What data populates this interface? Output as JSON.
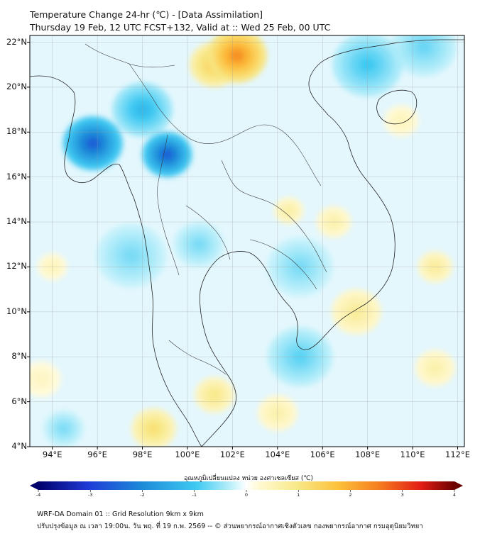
{
  "header": {
    "title_line1": "Temperature Change 24-hr (℃) - [Data Assimilation]",
    "title_line2": "Thursday 19 Feb, 12 UTC FCST+132, Valid at :: Wed 25 Feb, 00 UTC"
  },
  "map": {
    "lat_labels": [
      "22°N",
      "20°N",
      "18°N",
      "16°N",
      "14°N",
      "12°N",
      "10°N",
      "8°N",
      "6°N",
      "4°N"
    ],
    "lon_labels": [
      "94°E",
      "96°E",
      "98°E",
      "100°E",
      "102°E",
      "104°E",
      "106°E",
      "108°E",
      "110°E",
      "112°E"
    ],
    "lat_range": [
      4,
      22.3
    ],
    "lon_range": [
      93,
      112.3
    ],
    "anomalies": [
      {
        "lon": 102.2,
        "lat": 21.4,
        "value": 3.2,
        "spread": 1.2
      },
      {
        "lon": 101.2,
        "lat": 21.0,
        "value": 2.0,
        "spread": 1.0
      },
      {
        "lon": 95.8,
        "lat": 17.5,
        "value": -3.0,
        "spread": 1.2
      },
      {
        "lon": 99.1,
        "lat": 17.0,
        "value": -3.0,
        "spread": 1.0
      },
      {
        "lon": 98.0,
        "lat": 19.0,
        "value": -1.5,
        "spread": 1.2
      },
      {
        "lon": 108.0,
        "lat": 21.0,
        "value": -1.2,
        "spread": 1.4
      },
      {
        "lon": 110.5,
        "lat": 21.8,
        "value": -0.9,
        "spread": 1.3
      },
      {
        "lon": 105.0,
        "lat": 12.0,
        "value": -0.8,
        "spread": 1.3
      },
      {
        "lon": 105.0,
        "lat": 8.0,
        "value": -1.0,
        "spread": 1.3
      },
      {
        "lon": 97.5,
        "lat": 12.5,
        "value": -0.8,
        "spread": 1.4
      },
      {
        "lon": 100.5,
        "lat": 13.0,
        "value": -0.8,
        "spread": 1.0
      },
      {
        "lon": 104.5,
        "lat": 14.5,
        "value": 0.9,
        "spread": 0.6
      },
      {
        "lon": 106.5,
        "lat": 14.0,
        "value": 0.8,
        "spread": 0.7
      },
      {
        "lon": 107.5,
        "lat": 10.0,
        "value": 1.0,
        "spread": 1.0
      },
      {
        "lon": 101.2,
        "lat": 6.3,
        "value": 1.2,
        "spread": 0.8
      },
      {
        "lon": 98.5,
        "lat": 4.8,
        "value": 1.5,
        "spread": 0.9
      },
      {
        "lon": 94.0,
        "lat": 12.0,
        "value": 0.6,
        "spread": 0.6
      },
      {
        "lon": 111.0,
        "lat": 12.0,
        "value": 1.0,
        "spread": 0.7
      },
      {
        "lon": 111.0,
        "lat": 7.5,
        "value": 0.8,
        "spread": 0.8
      },
      {
        "lon": 109.5,
        "lat": 18.5,
        "value": 0.6,
        "spread": 0.7
      },
      {
        "lon": 104.0,
        "lat": 5.5,
        "value": 0.8,
        "spread": 0.8
      },
      {
        "lon": 93.5,
        "lat": 7.0,
        "value": 0.5,
        "spread": 0.8
      },
      {
        "lon": 94.5,
        "lat": 4.8,
        "value": -0.8,
        "spread": 0.8
      }
    ]
  },
  "colorbar": {
    "title": "อุณหภูมิเปลี่ยนแปลง หน่วย องศาเซลเซียส (℃)",
    "ticks": [
      "-4",
      "-3",
      "-2",
      "-1",
      "0",
      "1",
      "2",
      "3",
      "4"
    ],
    "min": -4,
    "max": 4
  },
  "footer": {
    "line1": "WRF-DA Domain 01 :: Grid Resolution 9km x 9km",
    "line2": "ปรับปรุงข้อมูล ณ เวลา 19:00น. วัน พฤ. ที่ 19 ก.พ. 2569 -- © ส่วนพยากรณ์อากาศเชิงตัวเลข กองพยากรณ์อากาศ กรมอุตุนิยมวิทยา"
  }
}
